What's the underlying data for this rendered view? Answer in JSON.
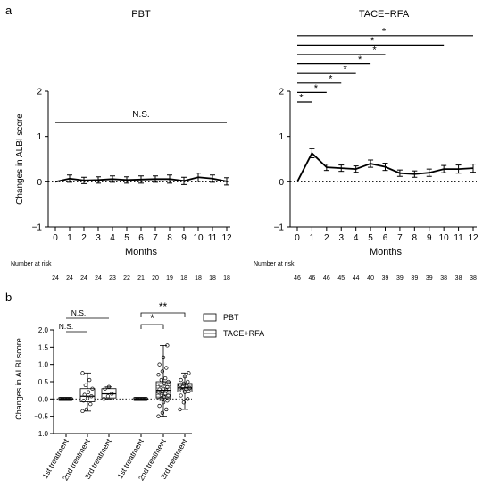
{
  "panel_a_label": "a",
  "panel_b_label": "b",
  "months_label": "Months",
  "risk_label": "Number at risk",
  "chart_data": [
    {
      "type": "line",
      "title": "PBT",
      "ylabel": "Changes in ALBI score",
      "xlabel": "Months",
      "x": [
        0,
        1,
        2,
        3,
        4,
        5,
        6,
        7,
        8,
        9,
        10,
        11,
        12
      ],
      "ylim": [
        -1,
        2
      ],
      "yticks": [
        -1,
        0,
        1,
        2
      ],
      "reference_line": 0,
      "series": [
        {
          "values": [
            0,
            0.07,
            0.03,
            0.04,
            0.06,
            0.04,
            0.05,
            0.06,
            0.06,
            0.02,
            0.1,
            0.07,
            0.01
          ],
          "error": [
            0,
            0.08,
            0.07,
            0.07,
            0.07,
            0.07,
            0.08,
            0.07,
            0.09,
            0.08,
            0.09,
            0.08,
            0.08
          ]
        }
      ],
      "number_at_risk": [
        24,
        24,
        24,
        24,
        23,
        22,
        21,
        20,
        19,
        18,
        18,
        18,
        18
      ],
      "significance": [
        {
          "label": "N.S.",
          "from": 0,
          "to": 12
        }
      ]
    },
    {
      "type": "line",
      "title": "TACE+RFA",
      "ylabel": "",
      "xlabel": "Months",
      "x": [
        0,
        1,
        2,
        3,
        4,
        5,
        6,
        7,
        8,
        9,
        10,
        11,
        12
      ],
      "ylim": [
        -1,
        2
      ],
      "yticks": [
        -1,
        0,
        1,
        2
      ],
      "reference_line": 0,
      "series": [
        {
          "values": [
            0,
            0.63,
            0.32,
            0.3,
            0.28,
            0.4,
            0.33,
            0.19,
            0.17,
            0.2,
            0.28,
            0.28,
            0.3
          ],
          "error": [
            0,
            0.1,
            0.07,
            0.07,
            0.07,
            0.08,
            0.08,
            0.07,
            0.07,
            0.08,
            0.08,
            0.09,
            0.09
          ]
        }
      ],
      "number_at_risk": [
        46,
        46,
        46,
        45,
        44,
        40,
        39,
        39,
        39,
        39,
        38,
        38,
        38
      ],
      "significance": [
        {
          "label": "*",
          "from": 0,
          "to": 1
        },
        {
          "label": "*",
          "from": 0,
          "to": 2
        },
        {
          "label": "*",
          "from": 0,
          "to": 3
        },
        {
          "label": "*",
          "from": 0,
          "to": 4
        },
        {
          "label": "*",
          "from": 0,
          "to": 5
        },
        {
          "label": "*",
          "from": 0,
          "to": 6
        },
        {
          "label": "*",
          "from": 0,
          "to": 10
        },
        {
          "label": "*",
          "from": 0,
          "to": 12
        }
      ]
    },
    {
      "type": "box",
      "ylabel": "Changes in ALBI score",
      "ylim": [
        -1.0,
        2.0
      ],
      "yticks": [
        "-1.0",
        "-0.5",
        "0.0",
        "0.5",
        "1.0",
        "1.5",
        "2.0"
      ],
      "reference_line": 0,
      "categories": [
        "1st treatment",
        "2nd treatment",
        "3rd treatment",
        "1st treatment",
        "2nd treatment",
        "3rd treatment"
      ],
      "legend": [
        "PBT",
        "TACE+RFA"
      ],
      "legend_position": "top-right",
      "groups": [
        {
          "series": "PBT",
          "category": "1st treatment",
          "min": 0,
          "q1": 0,
          "median": 0,
          "q3": 0,
          "max": 0,
          "points": [
            0,
            0,
            0,
            0,
            0,
            0,
            0,
            0,
            0,
            0,
            0,
            0
          ]
        },
        {
          "series": "PBT",
          "category": "2nd treatment",
          "min": -0.35,
          "q1": -0.08,
          "median": 0.08,
          "q3": 0.3,
          "max": 0.75,
          "points": [
            -0.35,
            -0.3,
            -0.15,
            -0.05,
            0.02,
            0.08,
            0.12,
            0.2,
            0.3,
            0.4,
            0.55,
            0.75
          ]
        },
        {
          "series": "PBT",
          "category": "3rd treatment",
          "min": 0.0,
          "q1": 0.03,
          "median": 0.15,
          "q3": 0.3,
          "max": 0.35,
          "points": [
            0.0,
            0.08,
            0.15,
            0.3,
            0.35
          ]
        },
        {
          "series": "TACE+RFA",
          "category": "1st treatment",
          "min": 0,
          "q1": 0,
          "median": 0,
          "q3": 0,
          "max": 0,
          "points": [
            0,
            0,
            0,
            0,
            0,
            0,
            0,
            0,
            0,
            0,
            0,
            0
          ]
        },
        {
          "series": "TACE+RFA",
          "category": "2nd treatment",
          "min": -0.5,
          "q1": 0.03,
          "median": 0.25,
          "q3": 0.5,
          "max": 1.55,
          "points": [
            -0.5,
            -0.4,
            -0.3,
            -0.2,
            -0.1,
            -0.05,
            0.0,
            0.05,
            0.1,
            0.12,
            0.15,
            0.2,
            0.22,
            0.25,
            0.28,
            0.3,
            0.35,
            0.4,
            0.45,
            0.5,
            0.55,
            0.6,
            0.7,
            0.8,
            0.9,
            1.0,
            1.2,
            1.55
          ]
        },
        {
          "series": "TACE+RFA",
          "category": "3rd treatment",
          "min": -0.3,
          "q1": 0.2,
          "median": 0.32,
          "q3": 0.45,
          "max": 0.75,
          "points": [
            -0.3,
            -0.1,
            0.0,
            0.1,
            0.2,
            0.22,
            0.25,
            0.3,
            0.32,
            0.35,
            0.38,
            0.4,
            0.45,
            0.5,
            0.55,
            0.65,
            0.75
          ]
        }
      ],
      "significance": [
        {
          "label": "N.S.",
          "from": 0,
          "to": 1
        },
        {
          "label": "N.S.",
          "from": 0,
          "to": 2
        },
        {
          "label": "*",
          "from": 3,
          "to": 4
        },
        {
          "label": "**",
          "from": 3,
          "to": 5
        }
      ]
    }
  ]
}
